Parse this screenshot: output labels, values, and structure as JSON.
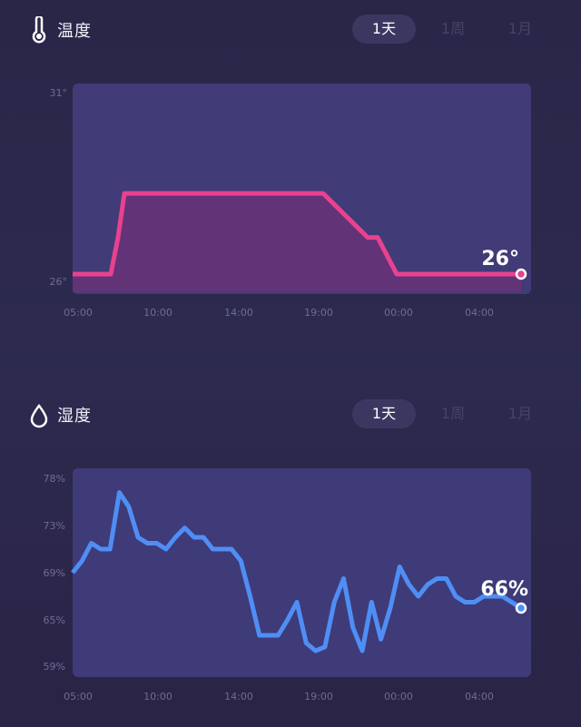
{
  "temperature": {
    "title": "温度",
    "icon": "thermometer-icon",
    "tabs": [
      {
        "label": "1天",
        "active": true
      },
      {
        "label": "1周",
        "active": false
      },
      {
        "label": "1月",
        "active": false
      }
    ],
    "current_value": "26°",
    "color": "#e8428f"
  },
  "humidity": {
    "title": "湿度",
    "icon": "water-drop-icon",
    "tabs": [
      {
        "label": "1天",
        "active": true
      },
      {
        "label": "1周",
        "active": false
      },
      {
        "label": "1月",
        "active": false
      }
    ],
    "current_value": "66%",
    "color": "#4f8ef5"
  },
  "chart_data": [
    {
      "type": "line",
      "x_ticks": [
        "05:00",
        "10:00",
        "14:00",
        "19:00",
        "00:00",
        "04:00"
      ],
      "y_ticks": [
        "31°",
        "26°"
      ],
      "ylim": [
        26,
        31
      ],
      "series": [
        {
          "x": [
            "05:00",
            "06:00",
            "07:00",
            "08:00",
            "10:00",
            "14:00",
            "19:00",
            "21:00",
            "23:00",
            "00:00",
            "02:00",
            "04:00",
            "05:00"
          ],
          "values": [
            26,
            26,
            27,
            28.2,
            28.2,
            28.2,
            28.2,
            27,
            27,
            26,
            26,
            26,
            26
          ]
        }
      ]
    },
    {
      "type": "line",
      "x_ticks": [
        "05:00",
        "10:00",
        "14:00",
        "19:00",
        "00:00",
        "04:00"
      ],
      "y_ticks": [
        "78%",
        "73%",
        "69%",
        "65%",
        "59%"
      ],
      "ylim": [
        59,
        78
      ],
      "series": [
        {
          "values": [
            69,
            70,
            71.5,
            71,
            71,
            76.5,
            75,
            72,
            71.5,
            71.5,
            71,
            72,
            72.8,
            72,
            72,
            71,
            71,
            71,
            70,
            67,
            63,
            63,
            63,
            65,
            66.5,
            62,
            61,
            61.5,
            66.5,
            68.5,
            64,
            61,
            66.5,
            62.5,
            66,
            69.5,
            68,
            67,
            68,
            68.5,
            68.5,
            67,
            66.5,
            66.5,
            67,
            67,
            67,
            66.5,
            66
          ]
        }
      ]
    }
  ]
}
